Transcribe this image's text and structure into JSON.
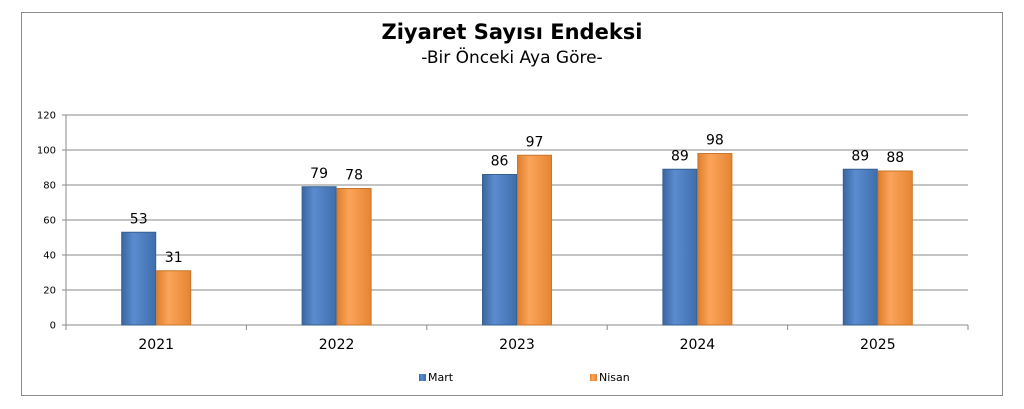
{
  "chart_data": {
    "type": "bar",
    "title": "Ziyaret Sayısı Endeksi",
    "subtitle": "-Bir Önceki Aya Göre-",
    "categories": [
      "2021",
      "2022",
      "2023",
      "2024",
      "2025"
    ],
    "series": [
      {
        "name": "Mart",
        "values": [
          53,
          79,
          86,
          89,
          89
        ],
        "color": "#4f81bd"
      },
      {
        "name": "Nisan",
        "values": [
          31,
          78,
          97,
          98,
          88
        ],
        "color": "#f79646"
      }
    ],
    "ylim": [
      0,
      120
    ],
    "yticks": [
      0,
      20,
      40,
      60,
      80,
      100,
      120
    ],
    "grid": true,
    "legend": "bottom"
  }
}
